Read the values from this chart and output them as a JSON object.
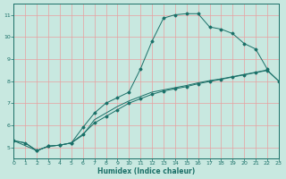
{
  "xlabel": "Humidex (Indice chaleur)",
  "xlim": [
    0,
    23
  ],
  "ylim": [
    4.5,
    11.5
  ],
  "xticks": [
    0,
    1,
    2,
    3,
    4,
    5,
    6,
    7,
    8,
    9,
    10,
    11,
    12,
    13,
    14,
    15,
    16,
    17,
    18,
    19,
    20,
    21,
    22,
    23
  ],
  "yticks": [
    5,
    6,
    7,
    8,
    9,
    10,
    11
  ],
  "bg_color": "#c8e8e0",
  "grid_color": "#e8a0a0",
  "line_color": "#1a7068",
  "curve1_x": [
    0,
    1,
    2,
    3,
    4,
    5,
    6,
    7,
    8,
    9,
    10,
    11,
    12,
    13,
    14,
    15,
    16,
    17,
    18,
    19,
    20,
    21,
    22
  ],
  "curve1_y": [
    5.3,
    5.2,
    4.85,
    5.05,
    5.1,
    5.2,
    5.9,
    6.55,
    7.0,
    7.25,
    7.5,
    8.55,
    9.8,
    10.85,
    11.0,
    11.05,
    11.05,
    10.45,
    10.35,
    10.15,
    9.7,
    9.45,
    8.55
  ],
  "curve2_x": [
    0,
    2,
    3,
    4,
    5,
    6,
    7,
    8,
    9,
    10,
    11,
    12,
    13,
    14,
    15,
    16,
    17,
    18,
    19,
    20,
    21,
    22,
    23
  ],
  "curve2_y": [
    5.3,
    4.85,
    5.05,
    5.1,
    5.2,
    5.6,
    6.1,
    6.4,
    6.7,
    7.0,
    7.2,
    7.4,
    7.55,
    7.65,
    7.75,
    7.88,
    7.98,
    8.08,
    8.18,
    8.28,
    8.38,
    8.48,
    8.0
  ],
  "curve3_x": [
    0,
    1,
    2,
    3,
    4,
    5,
    6,
    7,
    8,
    9,
    10,
    11,
    12,
    13,
    14,
    15,
    16,
    17,
    18,
    19,
    20,
    21,
    22,
    23
  ],
  "curve3_y": [
    5.3,
    5.2,
    4.85,
    5.05,
    5.1,
    5.2,
    5.55,
    6.25,
    6.55,
    6.85,
    7.1,
    7.3,
    7.5,
    7.6,
    7.7,
    7.8,
    7.92,
    8.02,
    8.1,
    8.2,
    8.3,
    8.4,
    8.5,
    8.0
  ]
}
